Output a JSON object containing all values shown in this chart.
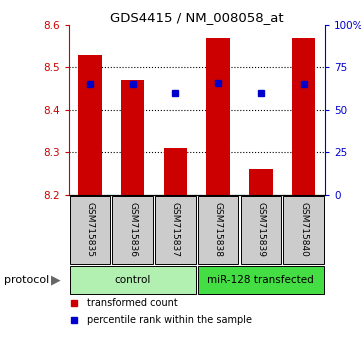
{
  "title": "GDS4415 / NM_008058_at",
  "samples": [
    "GSM715835",
    "GSM715836",
    "GSM715837",
    "GSM715838",
    "GSM715839",
    "GSM715840"
  ],
  "bar_values": [
    8.53,
    8.47,
    8.31,
    8.57,
    8.26,
    8.57
  ],
  "bar_base": 8.2,
  "percentile_values": [
    65,
    65,
    60,
    66,
    60,
    65
  ],
  "ylim_left": [
    8.2,
    8.6
  ],
  "ylim_right": [
    0,
    100
  ],
  "yticks_left": [
    8.2,
    8.3,
    8.4,
    8.5,
    8.6
  ],
  "yticks_right": [
    0,
    25,
    50,
    75,
    100
  ],
  "ytick_labels_right": [
    "0",
    "25",
    "50",
    "75",
    "100%"
  ],
  "bar_color": "#cc0000",
  "blue_marker_color": "#0000cc",
  "protocol_groups": [
    {
      "label": "control",
      "start": 0,
      "end": 2,
      "color": "#b2f0b2"
    },
    {
      "label": "miR-128 transfected",
      "start": 3,
      "end": 5,
      "color": "#44dd44"
    }
  ],
  "protocol_label": "protocol",
  "legend_items": [
    {
      "label": "transformed count",
      "color": "#cc0000"
    },
    {
      "label": "percentile rank within the sample",
      "color": "#0000cc"
    }
  ],
  "left_axis_color": "#cc0000",
  "right_axis_color": "#0000cc",
  "bar_width": 0.55,
  "label_bg_color": "#cccccc",
  "dotted_lines": [
    8.3,
    8.4,
    8.5
  ],
  "n_samples": 6
}
